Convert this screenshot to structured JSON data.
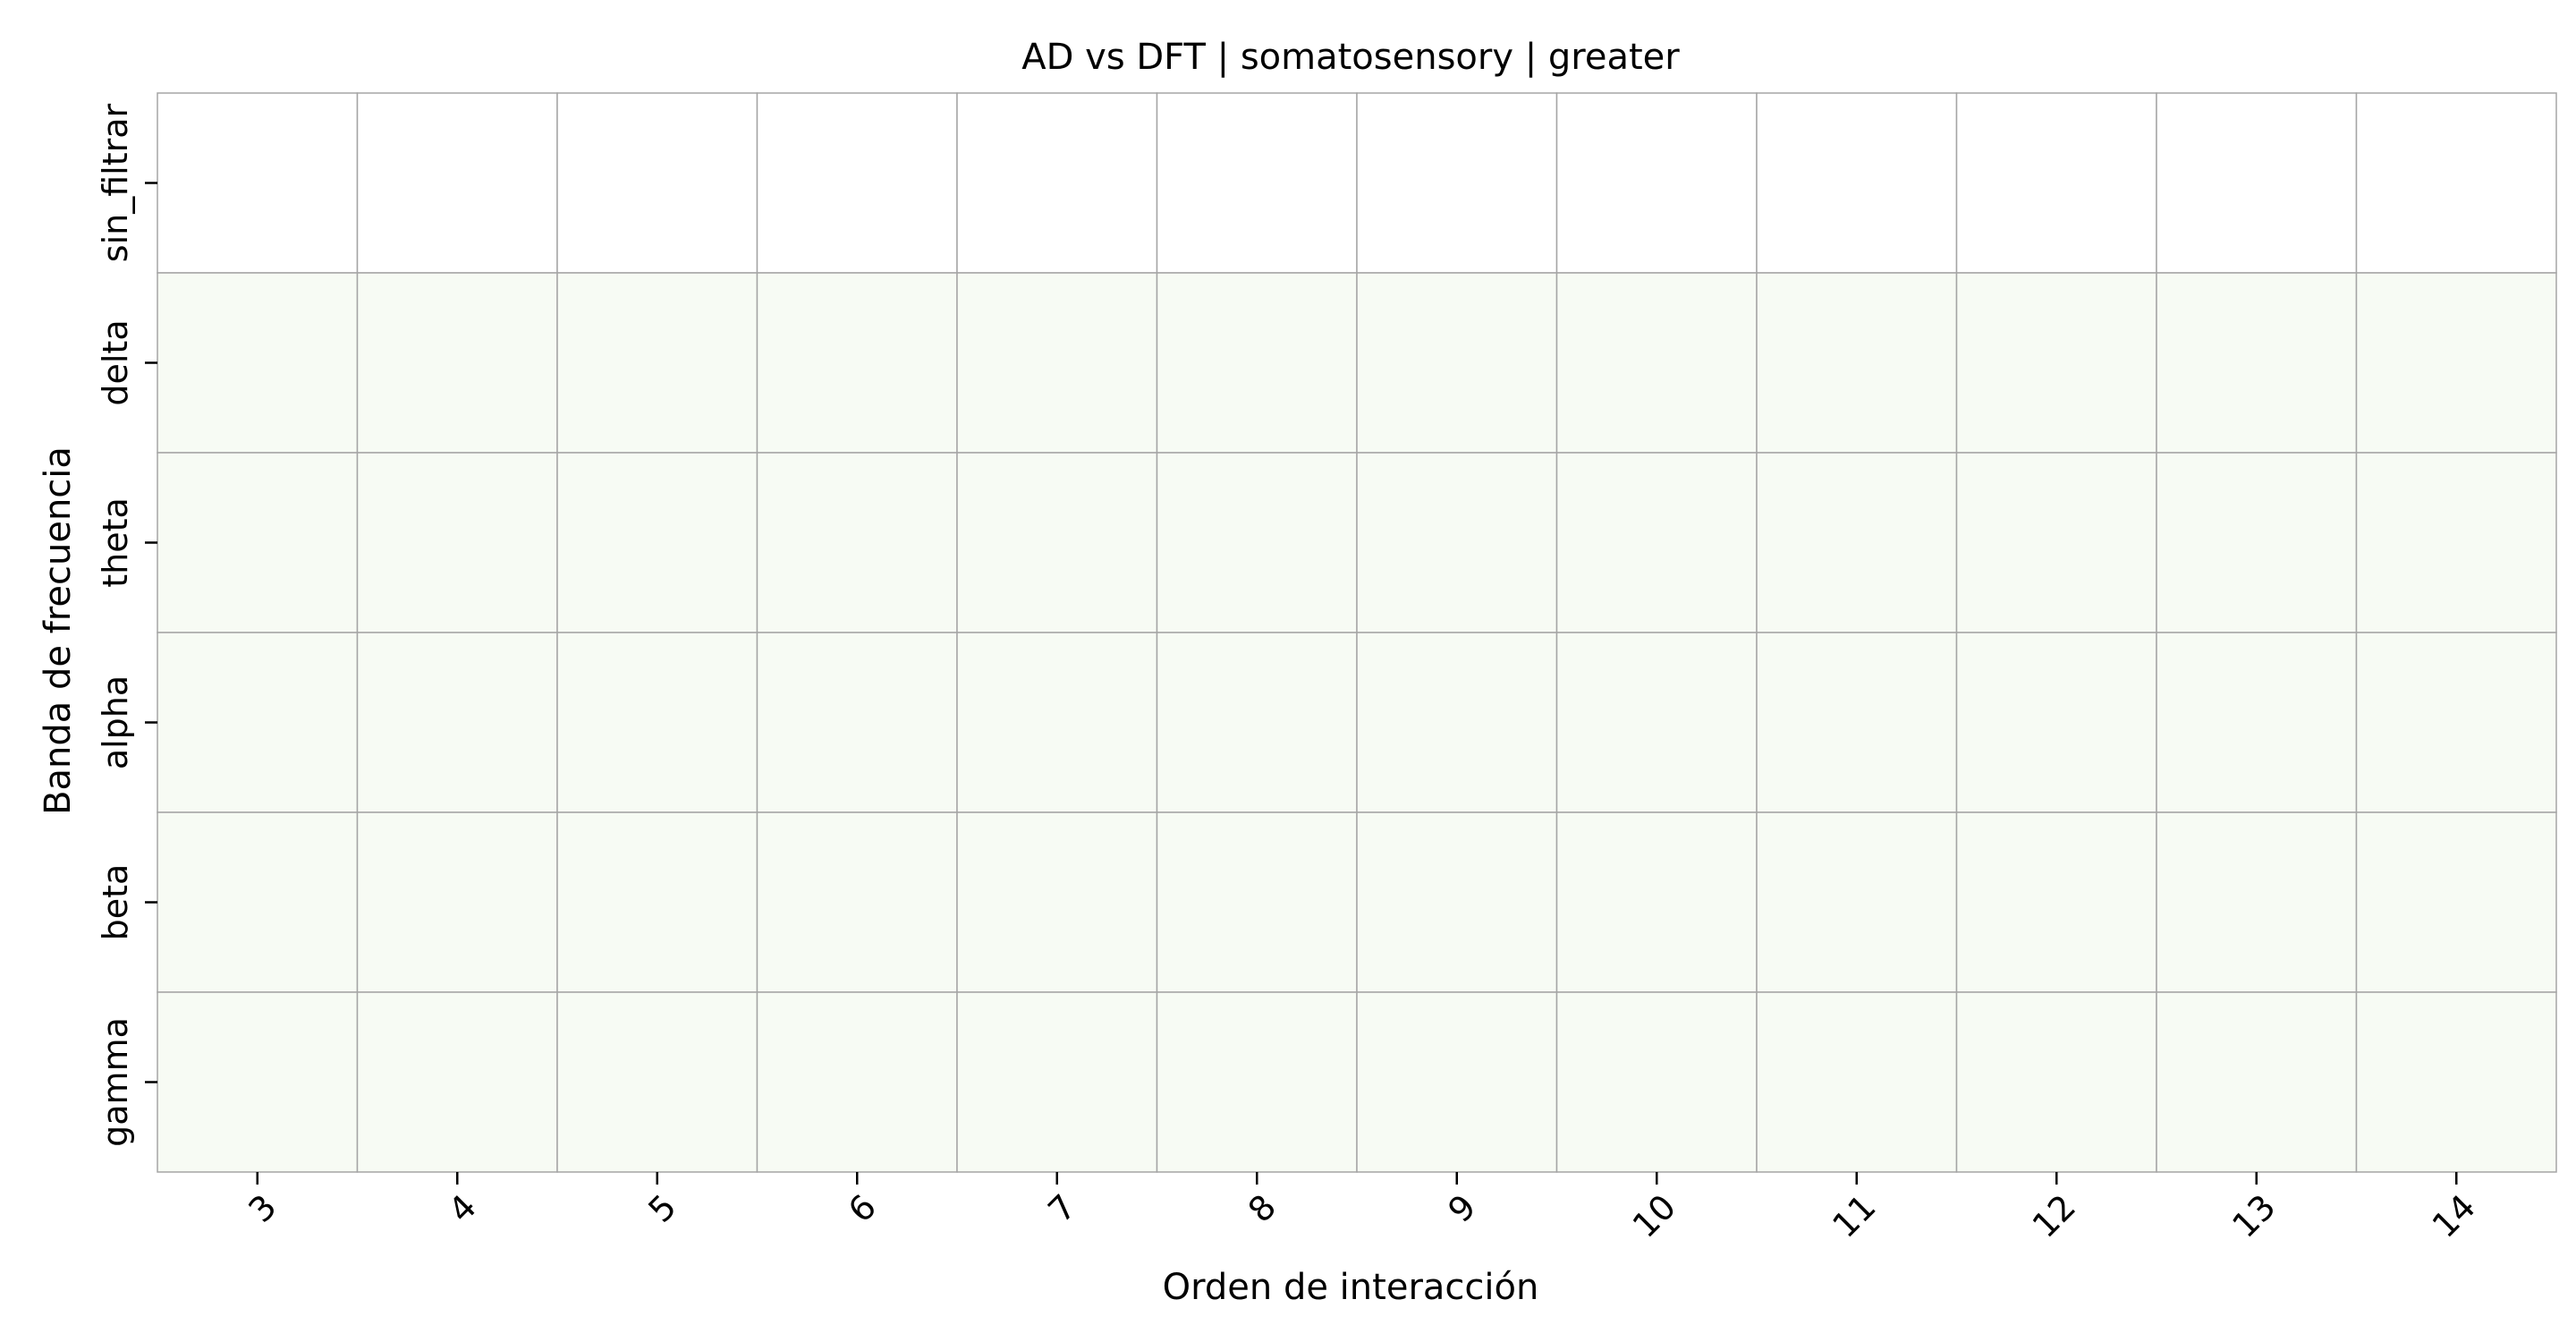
{
  "chart_data": {
    "type": "heatmap",
    "title": "AD vs DFT | somatosensory | greater",
    "xlabel": "Orden de interacción",
    "ylabel": "Banda de frecuencia",
    "x_categories": [
      "3",
      "4",
      "5",
      "6",
      "7",
      "8",
      "9",
      "10",
      "11",
      "12",
      "13",
      "14"
    ],
    "y_categories": [
      "sin_filtrar",
      "delta",
      "theta",
      "alpha",
      "beta",
      "gamma"
    ],
    "row_colors": [
      "#ffffff",
      "#f7fbf4",
      "#f7fbf4",
      "#f7fbf4",
      "#f7fbf4",
      "#f7fbf4"
    ],
    "grid_color": "#a5a5a5",
    "x_tick_rotation": -45,
    "y_tick_rotation": -90
  }
}
